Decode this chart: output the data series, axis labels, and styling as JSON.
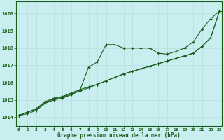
{
  "title": "Graphe pression niveau de la mer (hPa)",
  "background_color": "#c8eef0",
  "grid_color": "#b8dede",
  "line_color": "#1a5c1a",
  "x_labels": [
    "0",
    "1",
    "2",
    "3",
    "4",
    "5",
    "6",
    "7",
    "8",
    "9",
    "10",
    "11",
    "12",
    "13",
    "14",
    "15",
    "16",
    "17",
    "18",
    "19",
    "20",
    "21",
    "22",
    "23"
  ],
  "ylim": [
    1013.5,
    1020.7
  ],
  "yticks": [
    1014,
    1015,
    1016,
    1017,
    1018,
    1019,
    1020
  ],
  "line1": [
    1014.1,
    1014.2,
    1014.4,
    1014.8,
    1015.0,
    1015.1,
    1015.3,
    1015.55,
    1016.9,
    1017.2,
    1018.2,
    1018.2,
    1018.0,
    1018.0,
    1018.0,
    1018.0,
    1017.7,
    1017.65,
    1017.8,
    1018.0,
    1018.35,
    1019.1,
    1019.7,
    1020.15
  ],
  "line2": [
    1014.1,
    1014.3,
    1014.45,
    1014.85,
    1015.05,
    1015.15,
    1015.35,
    1015.5,
    1015.7,
    1015.9,
    1016.1,
    1016.3,
    1016.5,
    1016.65,
    1016.8,
    1016.95,
    1017.1,
    1017.25,
    1017.4,
    1017.55,
    1017.7,
    1018.1,
    1018.6,
    1020.15
  ],
  "line3": [
    1014.1,
    1014.3,
    1014.5,
    1014.9,
    1015.1,
    1015.2,
    1015.4,
    1015.6,
    1015.75,
    1015.9,
    1016.1,
    1016.3,
    1016.5,
    1016.65,
    1016.8,
    1016.95,
    1017.1,
    1017.25,
    1017.4,
    1017.55,
    1017.7,
    1018.1,
    1018.6,
    1020.15
  ]
}
